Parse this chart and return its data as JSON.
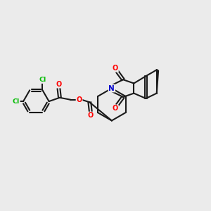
{
  "bg": "#ebebeb",
  "bond_color": "#1a1a1a",
  "bw": 1.5,
  "atom_colors": {
    "O": "#ff0000",
    "N": "#0000cd",
    "Cl": "#00bb00",
    "C": "#1a1a1a"
  },
  "figsize": [
    3.0,
    3.0
  ],
  "dpi": 100
}
